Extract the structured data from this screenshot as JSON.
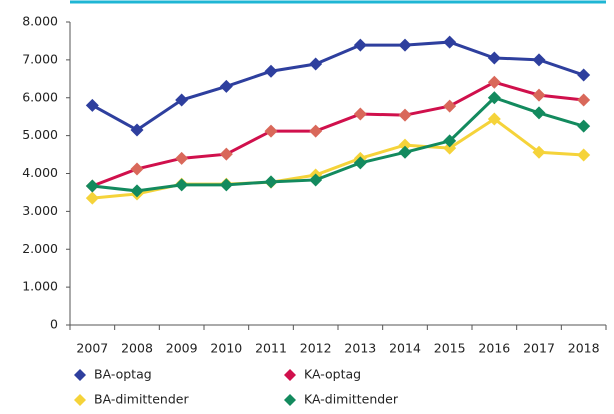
{
  "chart_data": {
    "type": "line",
    "categories": [
      "2007",
      "2008",
      "2009",
      "2010",
      "2011",
      "2012",
      "2013",
      "2014",
      "2015",
      "2016",
      "2017",
      "2018"
    ],
    "series": [
      {
        "name": "BA-optag",
        "color": "#2e3f9e",
        "marker_color": "#2e3f9e",
        "values": [
          5800,
          5150,
          5940,
          6300,
          6700,
          6890,
          7390,
          7390,
          7470,
          7050,
          7000,
          6600
        ]
      },
      {
        "name": "KA-optag",
        "color": "#d0104c",
        "marker_color": "#d9685a",
        "values": [
          3670,
          4120,
          4400,
          4510,
          5120,
          5120,
          5570,
          5540,
          5780,
          6410,
          6070,
          5940
        ]
      },
      {
        "name": "BA-dimittender",
        "color": "#f5d33a",
        "marker_color": "#f5d33a",
        "values": [
          3350,
          3460,
          3720,
          3720,
          3770,
          3960,
          4400,
          4750,
          4670,
          5440,
          4560,
          4490
        ]
      },
      {
        "name": "KA-dimittender",
        "color": "#138a5e",
        "marker_color": "#138a5e",
        "values": [
          3670,
          3540,
          3700,
          3700,
          3780,
          3830,
          4280,
          4560,
          4860,
          6000,
          5600,
          5250
        ]
      }
    ],
    "ylim": [
      0,
      8000
    ],
    "yticks": [
      {
        "value": 0,
        "label": "0"
      },
      {
        "value": 1000,
        "label": "1.000"
      },
      {
        "value": 2000,
        "label": "2.000"
      },
      {
        "value": 3000,
        "label": "3.000"
      },
      {
        "value": 4000,
        "label": "4.000"
      },
      {
        "value": 5000,
        "label": "5.000"
      },
      {
        "value": 6000,
        "label": "6.000"
      },
      {
        "value": 7000,
        "label": "7.000"
      },
      {
        "value": 8000,
        "label": "8.000"
      }
    ],
    "grid": false
  }
}
